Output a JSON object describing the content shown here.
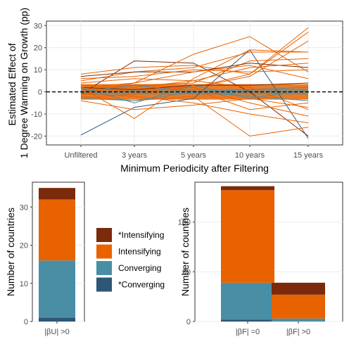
{
  "colors": {
    "star_intensifying": "#7b2a0b",
    "intensifying": "#e86300",
    "converging": "#4a8ea6",
    "star_converging": "#2e5676",
    "line_orange": "#e86300",
    "line_dark": "#7b2a0b",
    "line_teal": "#4a8ea6",
    "line_navy": "#2e5676"
  },
  "legend": {
    "items": [
      {
        "label": "*Intensifying",
        "color_key": "star_intensifying"
      },
      {
        "label": "Intensifying",
        "color_key": "intensifying"
      },
      {
        "label": "Converging",
        "color_key": "converging"
      },
      {
        "label": "*Converging",
        "color_key": "star_converging"
      }
    ]
  },
  "chart_data": [
    {
      "type": "line",
      "xlabel": "Minimum Periodicity after Filtering",
      "ylabel_lines": [
        "Estimated Effect of",
        "1 Degree Warming on Growth (pp)"
      ],
      "categories": [
        "Unfiltered",
        "3 years",
        "5 years",
        "10 years",
        "15 years"
      ],
      "yticks": [
        -20,
        -10,
        0,
        10,
        20,
        30
      ],
      "ylim": [
        -24,
        32
      ],
      "reference_line": {
        "y": 0,
        "style": "dashed"
      },
      "series": [
        {
          "color_key": "line_navy",
          "values": [
            -19.5,
            -7,
            -3,
            19,
            -21
          ]
        },
        {
          "color_key": "line_dark",
          "values": [
            -1,
            14,
            13,
            0,
            -20
          ]
        },
        {
          "color_key": "line_orange",
          "values": [
            2,
            -12,
            6,
            19,
            18
          ]
        },
        {
          "color_key": "line_orange",
          "values": [
            0,
            4,
            17,
            25,
            9
          ]
        },
        {
          "color_key": "line_orange",
          "values": [
            1,
            3,
            2,
            8,
            29
          ]
        },
        {
          "color_key": "line_orange",
          "values": [
            0,
            1,
            2,
            7,
            23
          ]
        },
        {
          "color_key": "line_orange",
          "values": [
            8,
            11,
            12,
            8,
            27
          ]
        },
        {
          "color_key": "line_orange",
          "values": [
            5,
            9,
            11,
            18,
            18
          ]
        },
        {
          "color_key": "line_orange",
          "values": [
            -1,
            3,
            4,
            14,
            15
          ]
        },
        {
          "color_key": "line_orange",
          "values": [
            -2,
            -4,
            -2,
            -20,
            -16
          ]
        },
        {
          "color_key": "line_orange",
          "values": [
            -1,
            -2,
            -5,
            -10,
            -14
          ]
        },
        {
          "color_key": "line_orange",
          "values": [
            1,
            0,
            2,
            -5,
            -11
          ]
        },
        {
          "color_key": "line_orange",
          "values": [
            3,
            2,
            5,
            2,
            -8
          ]
        },
        {
          "color_key": "line_dark",
          "values": [
            7,
            9,
            9,
            13,
            11
          ]
        },
        {
          "color_key": "line_dark",
          "values": [
            2,
            1,
            3,
            3,
            4
          ]
        },
        {
          "color_key": "line_teal",
          "values": [
            -3,
            -4,
            0,
            1,
            2
          ]
        },
        {
          "color_key": "line_teal",
          "values": [
            2,
            -5,
            3,
            -3,
            1
          ]
        },
        {
          "color_key": "line_orange",
          "values": [
            4,
            6,
            5,
            11,
            13
          ]
        },
        {
          "color_key": "line_orange",
          "values": [
            -4,
            -8,
            -6,
            -3,
            -7
          ]
        },
        {
          "color_key": "line_orange",
          "values": [
            6,
            7,
            10,
            9,
            10
          ]
        },
        {
          "color_key": "line_teal",
          "values": [
            0,
            3,
            0,
            -2,
            -4
          ]
        },
        {
          "color_key": "line_orange",
          "values": [
            -3,
            -1,
            1,
            -8,
            -5
          ]
        },
        {
          "color_key": "line_orange",
          "values": [
            2,
            4,
            9,
            12,
            6
          ]
        }
      ]
    },
    {
      "type": "bar",
      "stacked": true,
      "ylabel": "Number of countries",
      "categories": [
        "|βU| >0"
      ],
      "yticks": [
        0,
        10,
        20,
        30
      ],
      "ylim": [
        0,
        36.5
      ],
      "series": [
        {
          "name": "*Converging",
          "color_key": "star_converging",
          "values": [
            1
          ]
        },
        {
          "name": "Converging",
          "color_key": "converging",
          "values": [
            15
          ]
        },
        {
          "name": "Intensifying",
          "color_key": "intensifying",
          "values": [
            16
          ]
        },
        {
          "name": "*Intensifying",
          "color_key": "star_intensifying",
          "values": [
            3
          ]
        }
      ]
    },
    {
      "type": "bar",
      "stacked": true,
      "ylabel": "Number of countries",
      "categories": [
        "|βF| =0",
        "|βF| >0"
      ],
      "yticks": [
        0,
        50,
        100
      ],
      "ylim": [
        0,
        140
      ],
      "series": [
        {
          "name": "*Converging",
          "color_key": "star_converging",
          "values": [
            2,
            0
          ]
        },
        {
          "name": "Converging",
          "color_key": "converging",
          "values": [
            37,
            3
          ]
        },
        {
          "name": "Intensifying",
          "color_key": "intensifying",
          "values": [
            93,
            24
          ]
        },
        {
          "name": "*Intensifying",
          "color_key": "star_intensifying",
          "values": [
            4,
            12
          ]
        }
      ]
    }
  ]
}
